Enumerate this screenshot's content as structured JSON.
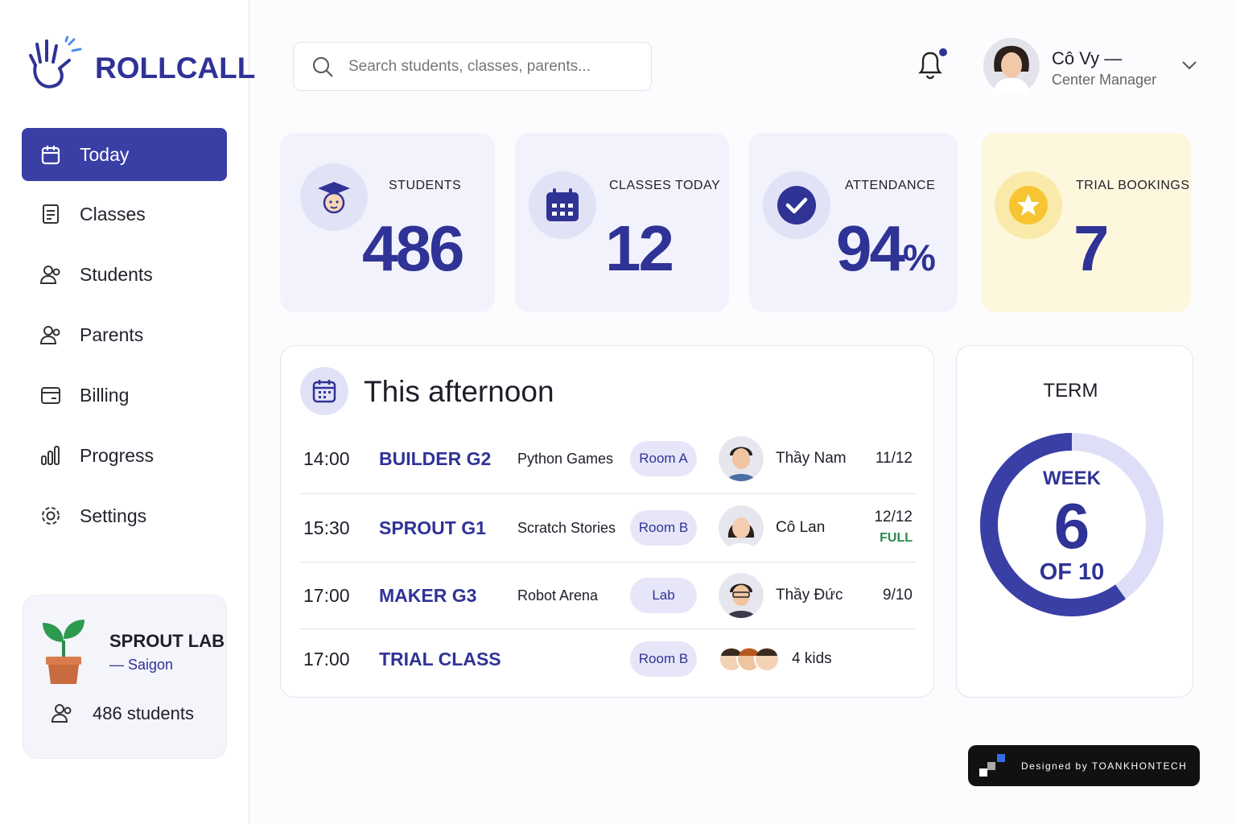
{
  "brand": {
    "name": "ROLLCALL"
  },
  "search": {
    "placeholder": "Search students, classes, parents..."
  },
  "user": {
    "name": "Cô Vy —",
    "role": "Center Manager"
  },
  "nav": [
    "Today",
    "Classes",
    "Students",
    "Parents",
    "Billing",
    "Progress",
    "Settings"
  ],
  "center": {
    "name": "SPROUT LAB",
    "city": "— Saigon",
    "students": "486 students"
  },
  "stats": [
    {
      "label": "STUDENTS",
      "value": 486
    },
    {
      "label": "CLASSES TODAY",
      "value": 12
    },
    {
      "label": "ATTENDANCE",
      "value": 94,
      "unit": "%"
    },
    {
      "label": "TRIAL BOOKINGS",
      "value": 7
    }
  ],
  "schedule": {
    "title": "This afternoon",
    "rows": [
      {
        "time": "14:00",
        "class": "BUILDER G2",
        "topic": "Python Games",
        "room": "Room A",
        "teacher": "Thầy Nam",
        "capacity": "11/12"
      },
      {
        "time": "15:30",
        "class": "SPROUT G1",
        "topic": "Scratch Stories",
        "room": "Room B",
        "teacher": "Cô Lan",
        "capacity": "12/12",
        "status": "FULL"
      },
      {
        "time": "17:00",
        "class": "MAKER G3",
        "topic": "Robot Arena",
        "room": "Lab",
        "teacher": "Thầy Đức",
        "capacity": "9/10"
      },
      {
        "time": "17:00",
        "class": "TRIAL CLASS",
        "room": "Room B",
        "teacher": "4 kids"
      }
    ]
  },
  "term": {
    "title": "TERM",
    "week_label": "WEEK",
    "week": 6,
    "of_label": "OF",
    "total": 10
  },
  "footer": {
    "credit": "Designed by TOANKHONTECH"
  }
}
